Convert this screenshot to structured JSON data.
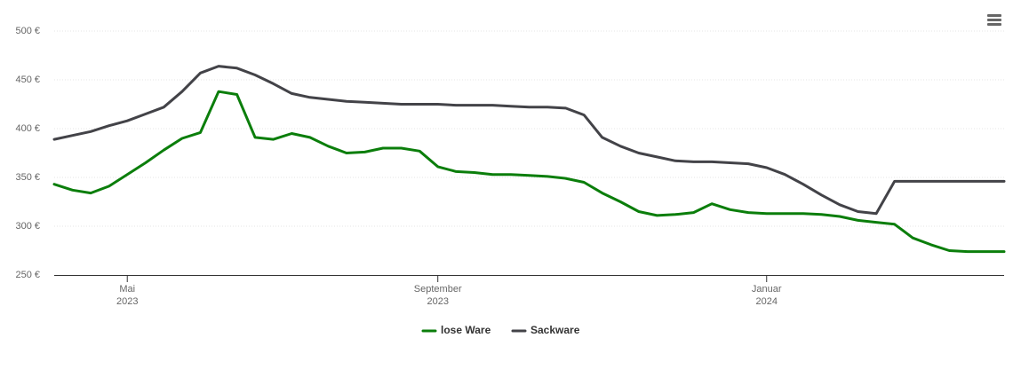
{
  "chart_data": {
    "type": "line",
    "categories": [
      null,
      null,
      null,
      null,
      "Mai 2023",
      null,
      null,
      null,
      null,
      null,
      null,
      null,
      null,
      null,
      null,
      null,
      null,
      null,
      null,
      null,
      null,
      "September 2023",
      null,
      null,
      null,
      null,
      null,
      null,
      null,
      null,
      null,
      null,
      null,
      null,
      null,
      null,
      null,
      null,
      null,
      "Januar 2024",
      null,
      null,
      null,
      null,
      null,
      null,
      null,
      null,
      null,
      null,
      null,
      null,
      null
    ],
    "series": [
      {
        "name": "lose Ware",
        "color": "#0b7e0b",
        "values": [
          343,
          337,
          334,
          341,
          353,
          365,
          378,
          390,
          396,
          438,
          435,
          391,
          389,
          395,
          391,
          382,
          375,
          376,
          380,
          380,
          377,
          361,
          356,
          355,
          353,
          353,
          352,
          351,
          349,
          345,
          334,
          325,
          315,
          311,
          312,
          314,
          323,
          317,
          314,
          313,
          313,
          313,
          312,
          310,
          306,
          304,
          302,
          288,
          281,
          275,
          274,
          274,
          274
        ]
      },
      {
        "name": "Sackware",
        "color": "#434348",
        "values": [
          389,
          393,
          397,
          403,
          408,
          415,
          422,
          438,
          457,
          464,
          462,
          455,
          446,
          436,
          432,
          430,
          428,
          427,
          426,
          425,
          425,
          425,
          424,
          424,
          424,
          423,
          422,
          422,
          421,
          414,
          391,
          382,
          375,
          371,
          367,
          366,
          366,
          365,
          364,
          360,
          353,
          343,
          332,
          322,
          315,
          313,
          346,
          346,
          346,
          346,
          346,
          346,
          346
        ]
      }
    ],
    "ylim": [
      250,
      500
    ],
    "yticks": [
      {
        "value": 250,
        "label": "250 €"
      },
      {
        "value": 300,
        "label": "300 €"
      },
      {
        "value": 350,
        "label": "350 €"
      },
      {
        "value": 400,
        "label": "400 €"
      },
      {
        "value": 450,
        "label": "450 €"
      },
      {
        "value": 500,
        "label": "500 €"
      }
    ],
    "grid": true
  }
}
